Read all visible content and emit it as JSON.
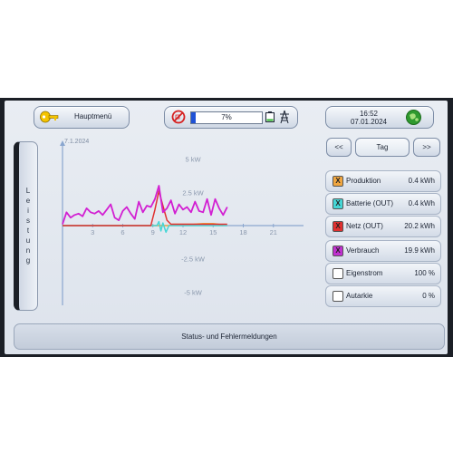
{
  "header": {
    "menu_label": "Hauptmenü",
    "battery_percent_label": "7%",
    "battery_level": 0.07,
    "time": "16:52",
    "date": "07.01.2024"
  },
  "sidebar": {
    "label": "L e i s t u n g"
  },
  "tabs": {
    "prev": "<<",
    "current": "Tag",
    "next": ">>"
  },
  "legend": {
    "items": [
      {
        "label": "Produktion",
        "value": "0.4 kWh",
        "mark": "X",
        "color": "#f0a640"
      },
      {
        "label": "Batterie (OUT)",
        "value": "0.4 kWh",
        "mark": "X",
        "color": "#46d6d6"
      },
      {
        "label": "Netz (OUT)",
        "value": "20.2 kWh",
        "mark": "X",
        "color": "#e03030"
      },
      {
        "label": "Verbrauch",
        "value": "19.9 kWh",
        "mark": "X",
        "color": "#c030d0"
      },
      {
        "label": "Eigenstrom",
        "value": "100 %",
        "mark": "",
        "color": "#ffffff"
      },
      {
        "label": "Autarkie",
        "value": "0 %",
        "mark": "",
        "color": "#ffffff"
      }
    ]
  },
  "footer": {
    "label": "Status- und Fehlermeldungen"
  },
  "chart_data": {
    "type": "line",
    "title": "7.1.2024",
    "xlim": [
      0,
      24
    ],
    "ylim": [
      -6,
      6
    ],
    "x_ticks": [
      "3",
      "6",
      "9",
      "12",
      "15",
      "18",
      "21"
    ],
    "y_ticks": [
      {
        "v": 5,
        "label": "5 kW"
      },
      {
        "v": 2.5,
        "label": "2.5 kW"
      },
      {
        "v": -2.5,
        "label": "-2.5 kW"
      },
      {
        "v": -5,
        "label": "-5 kW"
      }
    ],
    "series": [
      {
        "name": "Verbrauch",
        "color": "#d21fd2",
        "x": [
          0,
          0.4,
          0.8,
          1.2,
          1.6,
          2,
          2.4,
          2.8,
          3.2,
          3.6,
          4,
          4.4,
          4.8,
          5.2,
          5.6,
          6,
          6.4,
          6.8,
          7.2,
          7.6,
          8,
          8.4,
          8.8,
          9.2,
          9.6,
          10,
          10.4,
          10.8,
          11.2,
          11.6,
          12,
          12.4,
          12.8,
          13.2,
          13.6,
          14,
          14.4,
          14.8,
          15.2,
          15.6,
          16,
          16.4
        ],
        "y": [
          0.1,
          1.0,
          0.6,
          0.8,
          0.9,
          0.7,
          1.3,
          1.0,
          0.9,
          1.1,
          0.8,
          1.2,
          1.6,
          0.6,
          0.4,
          1.1,
          1.4,
          0.9,
          0.5,
          1.8,
          1.0,
          1.5,
          1.4,
          2.0,
          3.0,
          1.0,
          1.3,
          1.9,
          0.9,
          1.6,
          1.2,
          1.4,
          1.0,
          1.8,
          1.1,
          1.0,
          2.0,
          0.8,
          2.0,
          1.3,
          0.8,
          1.4
        ]
      },
      {
        "name": "Netz (OUT)",
        "color": "#e03030",
        "x": [
          0,
          8.8,
          9.2,
          9.6,
          10,
          10.4,
          10.8,
          12,
          14,
          16.4
        ],
        "y": [
          0,
          0,
          1.2,
          2.6,
          1.5,
          0.4,
          0.1,
          0.1,
          0.1,
          0.1
        ]
      },
      {
        "name": "Batterie (OUT)",
        "color": "#46d6d6",
        "x": [
          0,
          9.4,
          9.6,
          9.8,
          10,
          10.3,
          10.6,
          16.4
        ],
        "y": [
          0,
          0,
          0.3,
          -0.4,
          0.2,
          -0.5,
          0,
          0
        ]
      },
      {
        "name": "Produktion",
        "color": "#f0a640",
        "x": [
          0,
          10.6,
          11,
          12,
          13,
          14,
          15,
          15.5,
          16
        ],
        "y": [
          0,
          0,
          0.1,
          0.1,
          0.1,
          0.15,
          0.15,
          0.1,
          0
        ]
      }
    ]
  }
}
